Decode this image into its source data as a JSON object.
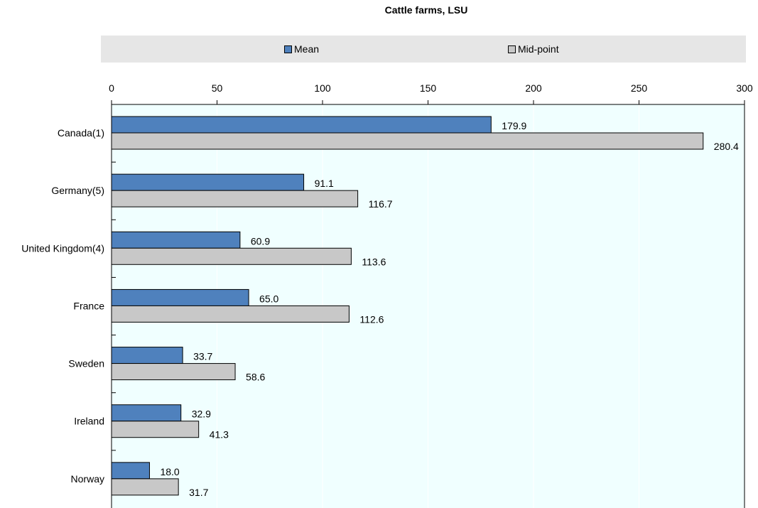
{
  "chart_data": {
    "type": "bar",
    "orientation": "horizontal",
    "title": "Cattle farms, LSU",
    "categories": [
      "Canada(1)",
      "Germany(5)",
      "United Kingdom(4)",
      "France",
      "Sweden",
      "Ireland",
      "Norway"
    ],
    "series": [
      {
        "name": "Mean",
        "color": "#4f81bd",
        "values": [
          179.9,
          91.1,
          60.9,
          65.0,
          33.7,
          32.9,
          18.0
        ],
        "labels": [
          "179.9",
          "91.1",
          "60.9",
          "65.0",
          "33.7",
          "32.9",
          "18.0"
        ]
      },
      {
        "name": "Mid-point",
        "color": "#c8c8c8",
        "values": [
          280.4,
          116.7,
          113.6,
          112.6,
          58.6,
          41.3,
          31.7
        ],
        "labels": [
          "280.4",
          "116.7",
          "113.6",
          "112.6",
          "58.6",
          "41.3",
          "31.7"
        ]
      }
    ],
    "xlim": [
      0,
      300
    ],
    "xticks": [
      "0",
      "50",
      "100",
      "150",
      "200",
      "250",
      "300"
    ],
    "xaxis_position": "top",
    "legend_position": "top",
    "grid": true,
    "plot_background": "#f0ffff"
  }
}
